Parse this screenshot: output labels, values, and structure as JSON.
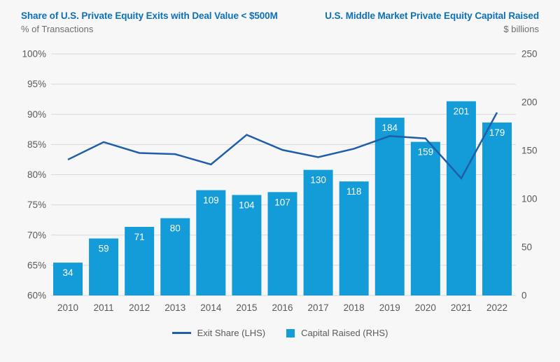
{
  "header": {
    "left": {
      "title": "Share of U.S. Private Equity Exits with Deal Value < $500M",
      "subtitle": "% of Transactions"
    },
    "right": {
      "title": "U.S. Middle Market Private Equity Capital Raised",
      "subtitle": "$ billions"
    }
  },
  "colors": {
    "background": "#f7f7f7",
    "title_blue": "#0C70B8",
    "bar_fill": "#139CD8",
    "line_stroke": "#1F5EA8",
    "grid": "#D8D8D8",
    "axis_text": "#5A5A5A",
    "bar_label_text": "#FFFFFF"
  },
  "legend": {
    "position": "bottom-center",
    "items": [
      {
        "label": "Exit Share (LHS)",
        "swatch": "line",
        "color": "#1F5EA8"
      },
      {
        "label": "Capital Raised (RHS)",
        "swatch": "square",
        "color": "#139CD8"
      }
    ]
  },
  "chart_data": {
    "type": "bar",
    "subtype": "combo-bar-line-dual-axis",
    "categories": [
      "2010",
      "2011",
      "2012",
      "2013",
      "2014",
      "2015",
      "2016",
      "2017",
      "2018",
      "2019",
      "2020",
      "2021",
      "2022"
    ],
    "series": [
      {
        "name": "Exit Share (LHS)",
        "type": "line",
        "axis": "left",
        "unit": "%",
        "values": [
          82.5,
          85.4,
          83.6,
          83.4,
          81.7,
          86.6,
          84.1,
          82.9,
          84.3,
          86.4,
          86.0,
          79.4,
          90.3
        ]
      },
      {
        "name": "Capital Raised (RHS)",
        "type": "bar",
        "axis": "right",
        "unit": "$ billions",
        "data_labels": true,
        "values": [
          34,
          59,
          71,
          80,
          109,
          104,
          107,
          130,
          118,
          184,
          159,
          201,
          179
        ]
      }
    ],
    "left_axis": {
      "min": 60,
      "max": 100,
      "step": 5,
      "tick_labels": [
        "100%",
        "95%",
        "90%",
        "85%",
        "80%",
        "75%",
        "70%",
        "65%",
        "60%"
      ],
      "format": "percent"
    },
    "right_axis": {
      "min": 0,
      "max": 250,
      "step": 50,
      "tick_labels": [
        "250",
        "200",
        "150",
        "100",
        "50",
        "0"
      ]
    },
    "grid": "horizontal",
    "legend_position": "bottom",
    "title": "Share of U.S. Private Equity Exits with Deal Value < $500M / U.S. Middle Market Private Equity Capital Raised"
  }
}
